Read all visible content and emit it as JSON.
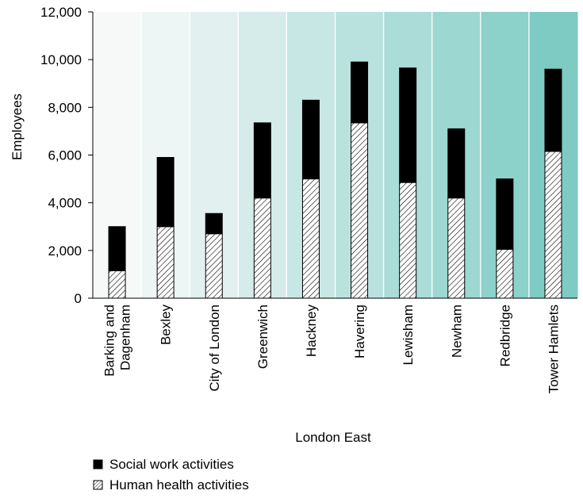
{
  "chart_data": {
    "type": "bar",
    "stacked": true,
    "title": "",
    "xlabel": "London East",
    "ylabel": "Employees",
    "ylim": [
      0,
      12000
    ],
    "yticks": [
      0,
      2000,
      4000,
      6000,
      8000,
      10000,
      12000
    ],
    "ytick_labels": [
      "0",
      "2,000",
      "4,000",
      "6,000",
      "8,000",
      "10,000",
      "12,000"
    ],
    "grid": "vertical",
    "legend_position": "bottom-left",
    "categories": [
      [
        "Barking and",
        "Dagenham"
      ],
      [
        "Bexley"
      ],
      [
        "City of London"
      ],
      [
        "Greenwich"
      ],
      [
        "Hackney"
      ],
      [
        "Havering"
      ],
      [
        "Lewisham"
      ],
      [
        "Newham"
      ],
      [
        "Redbridge"
      ],
      [
        "Tower Hamlets"
      ]
    ],
    "series": [
      {
        "name": "Human health activities",
        "pattern": "hatched",
        "values": [
          1150,
          3000,
          2700,
          4200,
          5000,
          7350,
          4850,
          4200,
          2050,
          6150
        ]
      },
      {
        "name": "Social work activities",
        "pattern": "solid",
        "color": "#000000",
        "values": [
          1850,
          2900,
          850,
          3150,
          3300,
          2550,
          4800,
          2900,
          2950,
          3450
        ]
      }
    ],
    "legend_order": [
      "Social work activities",
      "Human health activities"
    ],
    "background_gradient": [
      "#f7f9f9",
      "#7ecbc4"
    ]
  }
}
